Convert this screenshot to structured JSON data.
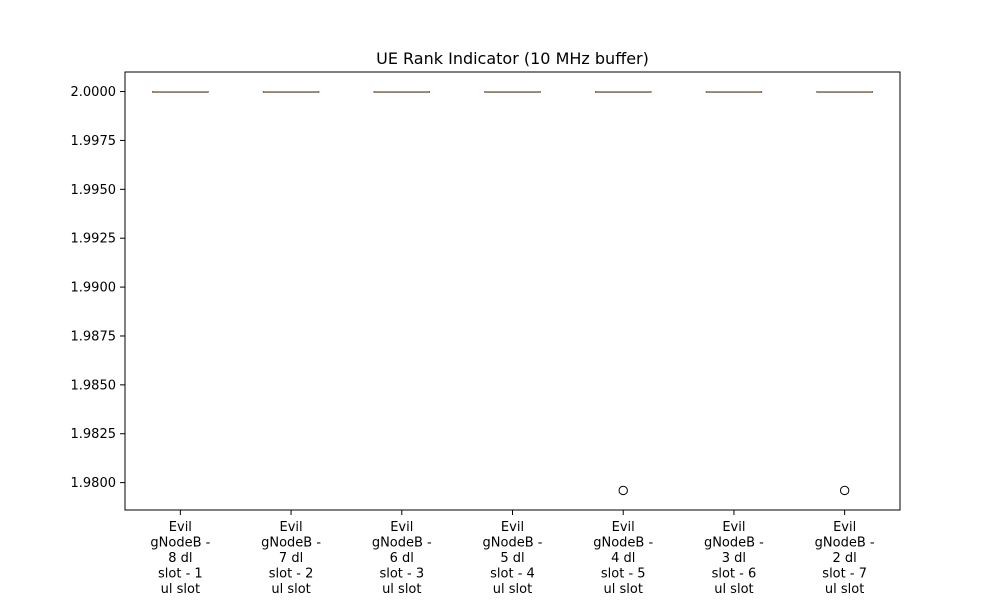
{
  "chart_data": {
    "type": "box",
    "title": "UE Rank Indicator (10 MHz buffer)",
    "xlabel": "",
    "ylabel": "",
    "ylim": [
      1.9786,
      2.001
    ],
    "yticks": [
      "2.0000",
      "1.9975",
      "1.9950",
      "1.9925",
      "1.9900",
      "1.9875",
      "1.9850",
      "1.9825",
      "1.9800"
    ],
    "ytick_values": [
      2.0,
      1.9975,
      1.995,
      1.9925,
      1.99,
      1.9875,
      1.985,
      1.9825,
      1.98
    ],
    "categories": [
      [
        "Evil",
        "gNodeB -",
        "8 dl",
        "slot - 1",
        "ul slot"
      ],
      [
        "Evil",
        "gNodeB -",
        "7 dl",
        "slot - 2",
        "ul slot"
      ],
      [
        "Evil",
        "gNodeB -",
        "6 dl",
        "slot - 3",
        "ul slot"
      ],
      [
        "Evil",
        "gNodeB -",
        "5 dl",
        "slot - 4",
        "ul slot"
      ],
      [
        "Evil",
        "gNodeB -",
        "4 dl",
        "slot - 5",
        "ul slot"
      ],
      [
        "Evil",
        "gNodeB -",
        "3 dl",
        "slot - 6",
        "ul slot"
      ],
      [
        "Evil",
        "gNodeB -",
        "2 dl",
        "slot - 7",
        "ul slot"
      ]
    ],
    "boxes": [
      {
        "min": 2.0,
        "q1": 2.0,
        "median": 2.0,
        "q3": 2.0,
        "max": 2.0,
        "outliers": []
      },
      {
        "min": 2.0,
        "q1": 2.0,
        "median": 2.0,
        "q3": 2.0,
        "max": 2.0,
        "outliers": []
      },
      {
        "min": 2.0,
        "q1": 2.0,
        "median": 2.0,
        "q3": 2.0,
        "max": 2.0,
        "outliers": []
      },
      {
        "min": 2.0,
        "q1": 2.0,
        "median": 2.0,
        "q3": 2.0,
        "max": 2.0,
        "outliers": []
      },
      {
        "min": 2.0,
        "q1": 2.0,
        "median": 2.0,
        "q3": 2.0,
        "max": 2.0,
        "outliers": [
          1.9796
        ]
      },
      {
        "min": 2.0,
        "q1": 2.0,
        "median": 2.0,
        "q3": 2.0,
        "max": 2.0,
        "outliers": []
      },
      {
        "min": 2.0,
        "q1": 2.0,
        "median": 2.0,
        "q3": 2.0,
        "max": 2.0,
        "outliers": [
          1.9796
        ]
      }
    ],
    "grid": false,
    "colors": {
      "median": "#ff7f0e",
      "box": "#000000",
      "outlier": "#000000"
    }
  }
}
